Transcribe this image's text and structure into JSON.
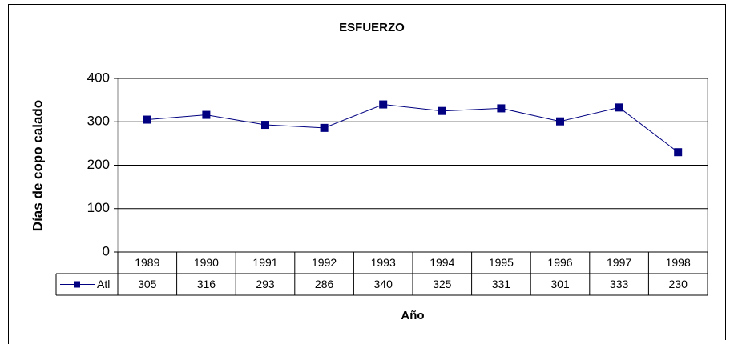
{
  "chart_data": {
    "type": "line",
    "title": "ESFUERZO",
    "x_label": "Año",
    "y_label": "Días de copo calado",
    "categories": [
      "1989",
      "1990",
      "1991",
      "1992",
      "1993",
      "1994",
      "1995",
      "1996",
      "1997",
      "1998"
    ],
    "series": [
      {
        "name": "Atl",
        "color": "#000080",
        "values": [
          305,
          316,
          293,
          286,
          340,
          325,
          331,
          301,
          333,
          230
        ]
      }
    ],
    "ylim": [
      0,
      400
    ],
    "yticks": [
      0,
      100,
      200,
      300,
      400
    ],
    "grid": true
  }
}
